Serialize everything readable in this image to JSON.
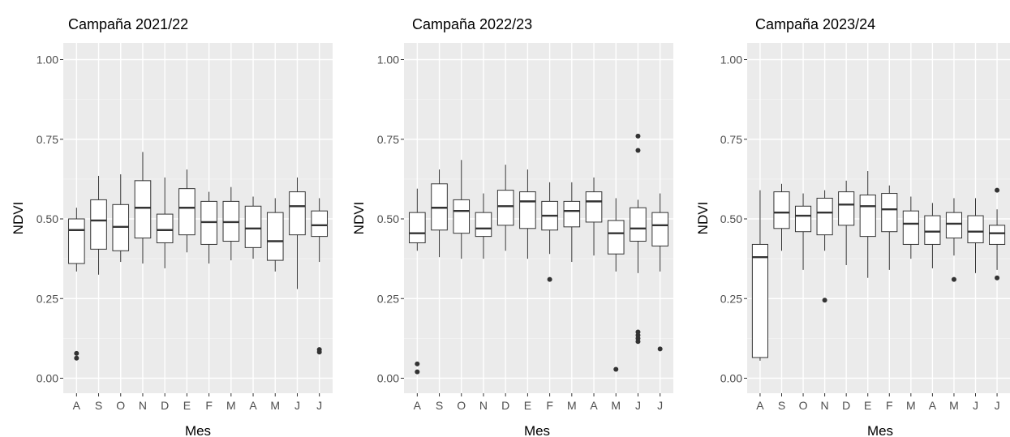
{
  "chart_data": [
    {
      "type": "boxplot",
      "title": "Campaña 2021/22",
      "xlabel": "Mes",
      "ylabel": "NDVI",
      "ylim": [
        0,
        1
      ],
      "y_ticks": [
        "0.00",
        "0.25",
        "0.50",
        "0.75",
        "1.00"
      ],
      "categories": [
        "A",
        "S",
        "O",
        "N",
        "D",
        "E",
        "F",
        "M",
        "A",
        "M",
        "J",
        "J"
      ],
      "boxes": [
        {
          "low": 0.335,
          "q1": 0.36,
          "median": 0.465,
          "q3": 0.5,
          "high": 0.535,
          "outliers": [
            0.078,
            0.063
          ]
        },
        {
          "low": 0.325,
          "q1": 0.405,
          "median": 0.495,
          "q3": 0.56,
          "high": 0.635,
          "outliers": []
        },
        {
          "low": 0.365,
          "q1": 0.4,
          "median": 0.475,
          "q3": 0.545,
          "high": 0.64,
          "outliers": []
        },
        {
          "low": 0.36,
          "q1": 0.44,
          "median": 0.535,
          "q3": 0.62,
          "high": 0.71,
          "outliers": []
        },
        {
          "low": 0.345,
          "q1": 0.425,
          "median": 0.465,
          "q3": 0.515,
          "high": 0.63,
          "outliers": []
        },
        {
          "low": 0.395,
          "q1": 0.45,
          "median": 0.535,
          "q3": 0.595,
          "high": 0.655,
          "outliers": []
        },
        {
          "low": 0.36,
          "q1": 0.42,
          "median": 0.49,
          "q3": 0.555,
          "high": 0.585,
          "outliers": []
        },
        {
          "low": 0.37,
          "q1": 0.43,
          "median": 0.49,
          "q3": 0.555,
          "high": 0.6,
          "outliers": []
        },
        {
          "low": 0.375,
          "q1": 0.41,
          "median": 0.47,
          "q3": 0.54,
          "high": 0.57,
          "outliers": []
        },
        {
          "low": 0.335,
          "q1": 0.37,
          "median": 0.43,
          "q3": 0.52,
          "high": 0.565,
          "outliers": []
        },
        {
          "low": 0.28,
          "q1": 0.45,
          "median": 0.54,
          "q3": 0.585,
          "high": 0.63,
          "outliers": []
        },
        {
          "low": 0.365,
          "q1": 0.445,
          "median": 0.48,
          "q3": 0.525,
          "high": 0.565,
          "outliers": [
            0.09,
            0.082
          ]
        }
      ]
    },
    {
      "type": "boxplot",
      "title": "Campaña 2022/23",
      "xlabel": "Mes",
      "ylabel": "NDVI",
      "ylim": [
        0,
        1
      ],
      "y_ticks": [
        "0.00",
        "0.25",
        "0.50",
        "0.75",
        "1.00"
      ],
      "categories": [
        "A",
        "S",
        "O",
        "N",
        "D",
        "E",
        "F",
        "M",
        "A",
        "M",
        "J",
        "J"
      ],
      "boxes": [
        {
          "low": 0.4,
          "q1": 0.425,
          "median": 0.455,
          "q3": 0.52,
          "high": 0.595,
          "outliers": [
            0.045,
            0.02
          ]
        },
        {
          "low": 0.38,
          "q1": 0.465,
          "median": 0.535,
          "q3": 0.61,
          "high": 0.655,
          "outliers": []
        },
        {
          "low": 0.375,
          "q1": 0.455,
          "median": 0.525,
          "q3": 0.56,
          "high": 0.685,
          "outliers": []
        },
        {
          "low": 0.375,
          "q1": 0.445,
          "median": 0.47,
          "q3": 0.52,
          "high": 0.58,
          "outliers": []
        },
        {
          "low": 0.4,
          "q1": 0.48,
          "median": 0.54,
          "q3": 0.59,
          "high": 0.67,
          "outliers": []
        },
        {
          "low": 0.375,
          "q1": 0.47,
          "median": 0.555,
          "q3": 0.585,
          "high": 0.655,
          "outliers": []
        },
        {
          "low": 0.39,
          "q1": 0.465,
          "median": 0.51,
          "q3": 0.555,
          "high": 0.615,
          "outliers": [
            0.31
          ]
        },
        {
          "low": 0.365,
          "q1": 0.475,
          "median": 0.525,
          "q3": 0.555,
          "high": 0.615,
          "outliers": []
        },
        {
          "low": 0.385,
          "q1": 0.49,
          "median": 0.555,
          "q3": 0.585,
          "high": 0.63,
          "outliers": []
        },
        {
          "low": 0.335,
          "q1": 0.39,
          "median": 0.455,
          "q3": 0.495,
          "high": 0.565,
          "outliers": [
            0.028
          ]
        },
        {
          "low": 0.33,
          "q1": 0.43,
          "median": 0.47,
          "q3": 0.535,
          "high": 0.56,
          "outliers": [
            0.76,
            0.715,
            0.145,
            0.135,
            0.125,
            0.115
          ]
        },
        {
          "low": 0.335,
          "q1": 0.415,
          "median": 0.48,
          "q3": 0.52,
          "high": 0.58,
          "outliers": [
            0.092
          ]
        }
      ]
    },
    {
      "type": "boxplot",
      "title": "Campaña 2023/24",
      "xlabel": "Mes",
      "ylabel": "NDVI",
      "ylim": [
        0,
        1
      ],
      "y_ticks": [
        "0.00",
        "0.25",
        "0.50",
        "0.75",
        "1.00"
      ],
      "categories": [
        "A",
        "S",
        "O",
        "N",
        "D",
        "E",
        "F",
        "M",
        "A",
        "M",
        "J",
        "J"
      ],
      "boxes": [
        {
          "low": 0.055,
          "q1": 0.065,
          "median": 0.38,
          "q3": 0.42,
          "high": 0.59,
          "outliers": []
        },
        {
          "low": 0.4,
          "q1": 0.47,
          "median": 0.52,
          "q3": 0.585,
          "high": 0.61,
          "outliers": []
        },
        {
          "low": 0.34,
          "q1": 0.46,
          "median": 0.51,
          "q3": 0.54,
          "high": 0.58,
          "outliers": []
        },
        {
          "low": 0.4,
          "q1": 0.45,
          "median": 0.52,
          "q3": 0.565,
          "high": 0.59,
          "outliers": [
            0.245
          ]
        },
        {
          "low": 0.355,
          "q1": 0.48,
          "median": 0.545,
          "q3": 0.585,
          "high": 0.62,
          "outliers": []
        },
        {
          "low": 0.315,
          "q1": 0.445,
          "median": 0.54,
          "q3": 0.575,
          "high": 0.65,
          "outliers": []
        },
        {
          "low": 0.34,
          "q1": 0.46,
          "median": 0.53,
          "q3": 0.58,
          "high": 0.605,
          "outliers": []
        },
        {
          "low": 0.375,
          "q1": 0.42,
          "median": 0.485,
          "q3": 0.525,
          "high": 0.57,
          "outliers": []
        },
        {
          "low": 0.345,
          "q1": 0.42,
          "median": 0.46,
          "q3": 0.51,
          "high": 0.55,
          "outliers": []
        },
        {
          "low": 0.385,
          "q1": 0.44,
          "median": 0.485,
          "q3": 0.52,
          "high": 0.565,
          "outliers": [
            0.31
          ]
        },
        {
          "low": 0.33,
          "q1": 0.425,
          "median": 0.46,
          "q3": 0.51,
          "high": 0.565,
          "outliers": []
        },
        {
          "low": 0.34,
          "q1": 0.42,
          "median": 0.455,
          "q3": 0.48,
          "high": 0.53,
          "outliers": [
            0.59,
            0.315
          ]
        }
      ]
    }
  ],
  "colors": {
    "panel_background": "#ebebeb",
    "grid_major": "#ffffff",
    "grid_minor": "#f5f5f5",
    "box_fill": "#ffffff",
    "box_line": "#333333",
    "tick_text": "#4d4d4d"
  }
}
